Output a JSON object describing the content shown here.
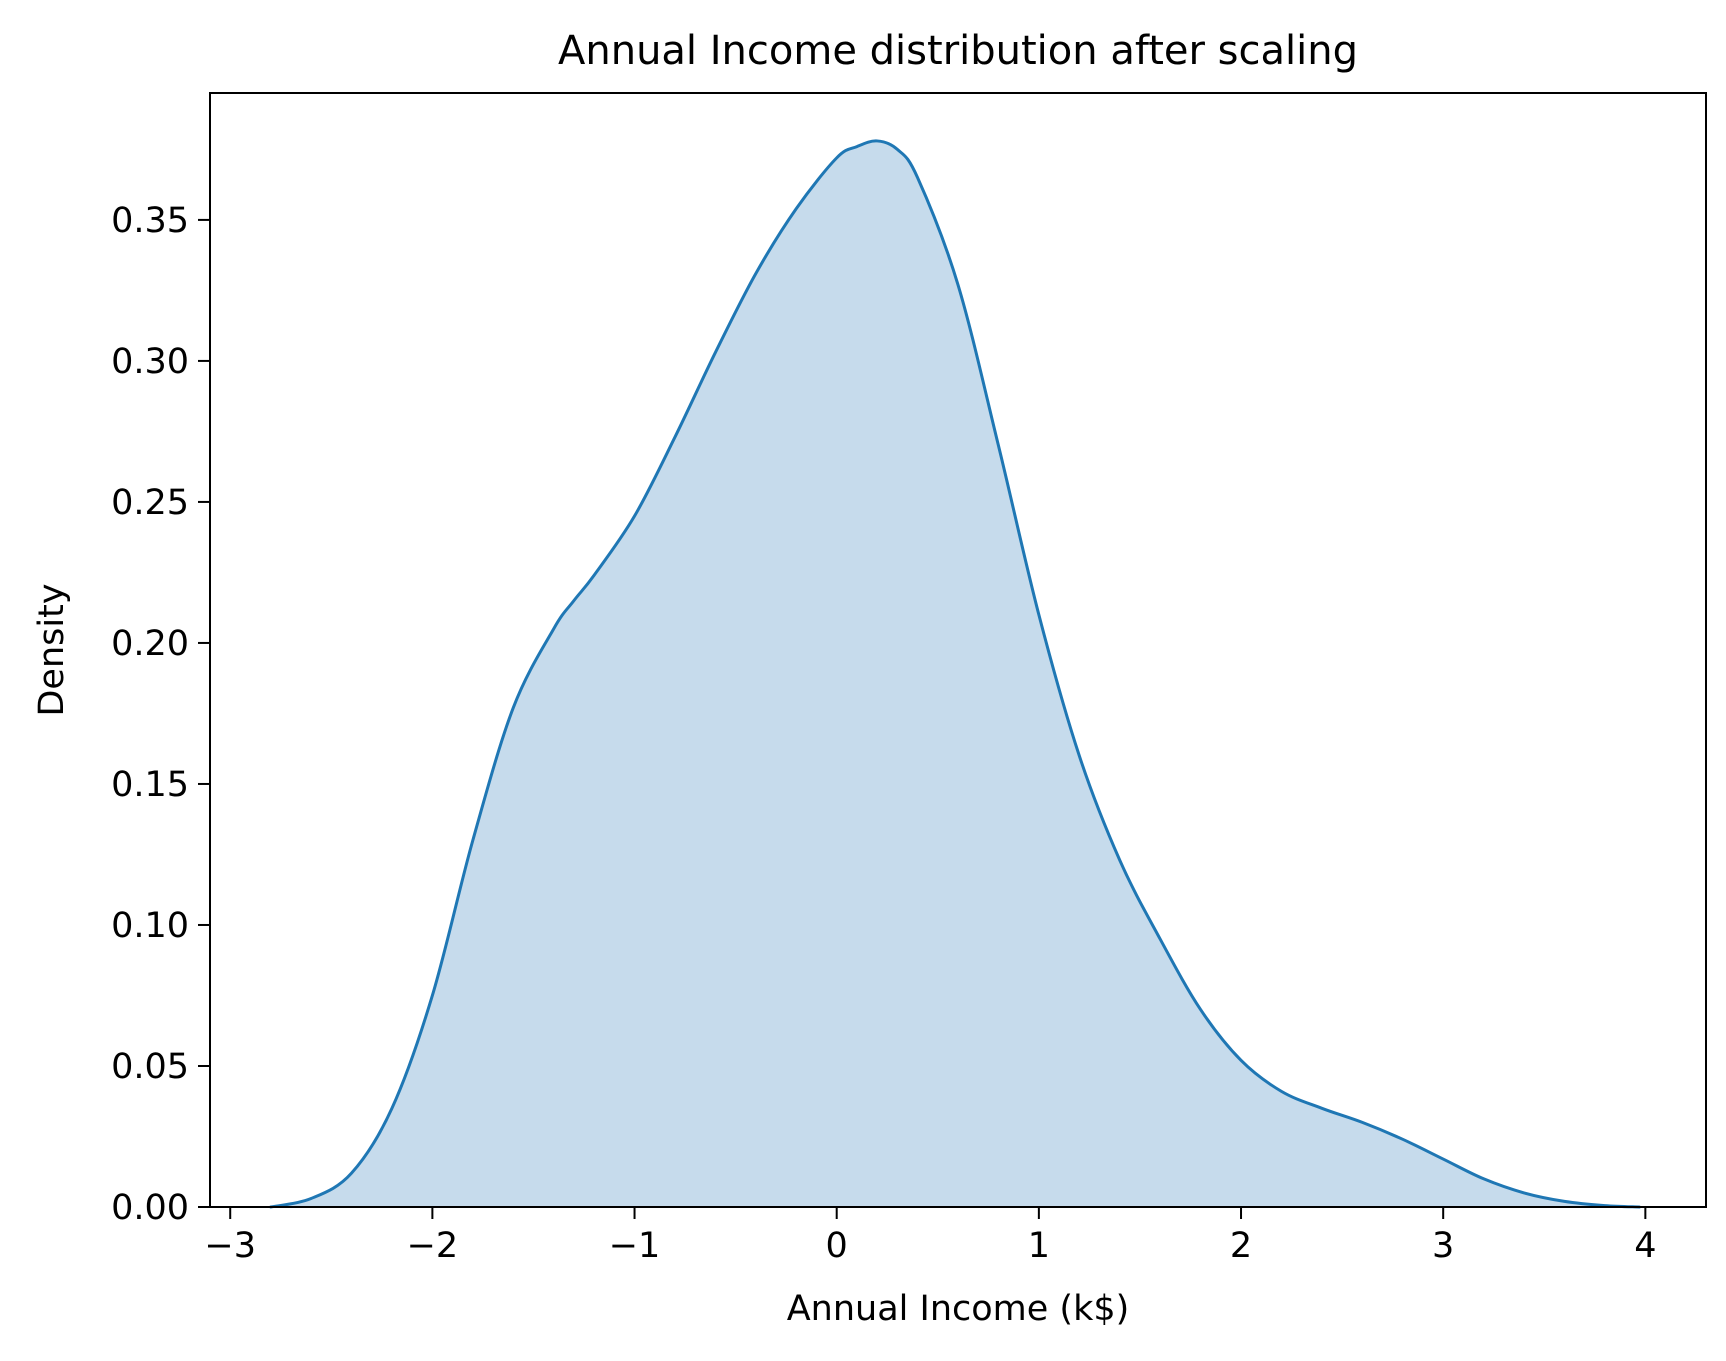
{
  "chart_data": {
    "type": "area",
    "title": "Annual Income distribution after scaling",
    "xlabel": "Annual Income (k$)",
    "ylabel": "Density",
    "xlim": [
      -3.1,
      4.3
    ],
    "ylim": [
      0,
      0.395
    ],
    "xticks": [
      -3,
      -2,
      -1,
      0,
      1,
      2,
      3,
      4
    ],
    "xtick_labels": [
      "−3",
      "−2",
      "−1",
      "0",
      "1",
      "2",
      "3",
      "4"
    ],
    "yticks": [
      0.0,
      0.05,
      0.1,
      0.15,
      0.2,
      0.25,
      0.3,
      0.35
    ],
    "ytick_labels": [
      "0.00",
      "0.05",
      "0.10",
      "0.15",
      "0.20",
      "0.25",
      "0.30",
      "0.35"
    ],
    "grid": false,
    "legend": "none",
    "colors": {
      "line": "#1f77b4",
      "fill": "#c6dbec",
      "axis": "#000000"
    },
    "series": [
      {
        "x": [
          -2.8,
          -2.6,
          -2.4,
          -2.2,
          -2.0,
          -1.8,
          -1.6,
          -1.4,
          -1.3,
          -1.2,
          -1.0,
          -0.8,
          -0.6,
          -0.4,
          -0.2,
          0.0,
          0.1,
          0.2,
          0.3,
          0.4,
          0.6,
          0.8,
          1.0,
          1.2,
          1.4,
          1.6,
          1.8,
          2.0,
          2.2,
          2.4,
          2.6,
          2.8,
          3.0,
          3.2,
          3.4,
          3.6,
          3.8,
          3.97
        ],
        "y": [
          0.0,
          0.003,
          0.012,
          0.035,
          0.075,
          0.13,
          0.177,
          0.205,
          0.215,
          0.224,
          0.245,
          0.273,
          0.303,
          0.331,
          0.354,
          0.372,
          0.376,
          0.378,
          0.375,
          0.365,
          0.327,
          0.27,
          0.21,
          0.16,
          0.123,
          0.095,
          0.07,
          0.052,
          0.041,
          0.035,
          0.03,
          0.024,
          0.017,
          0.01,
          0.005,
          0.002,
          0.0005,
          0.0
        ]
      }
    ]
  }
}
